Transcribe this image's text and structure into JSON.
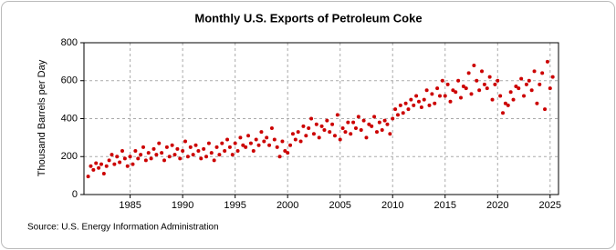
{
  "chart_data": {
    "type": "scatter",
    "title": "Monthly U.S. Exports of Petroleum Coke",
    "y_label": "Thousand Barrels per Day",
    "source": "Source: U.S. Energy Information Administration",
    "color": "#cc0000",
    "grid": true,
    "xlim": [
      1980.6,
      2025.8
    ],
    "xticks": [
      1985,
      1990,
      1995,
      2000,
      2005,
      2010,
      2015,
      2020,
      2025
    ],
    "ylim": [
      0,
      800
    ],
    "yticks": [
      0,
      200,
      400,
      600,
      800
    ],
    "x": [
      1981,
      1981.25,
      1981.5,
      1981.75,
      1982,
      1982.25,
      1982.5,
      1982.75,
      1983,
      1983.25,
      1983.5,
      1983.75,
      1984,
      1984.25,
      1984.5,
      1984.75,
      1985,
      1985.25,
      1985.5,
      1985.75,
      1986,
      1986.25,
      1986.5,
      1986.75,
      1987,
      1987.25,
      1987.5,
      1987.75,
      1988,
      1988.25,
      1988.5,
      1988.75,
      1989,
      1989.25,
      1989.5,
      1989.75,
      1990,
      1990.25,
      1990.5,
      1990.75,
      1991,
      1991.25,
      1991.5,
      1991.75,
      1992,
      1992.25,
      1992.5,
      1992.75,
      1993,
      1993.25,
      1993.5,
      1993.75,
      1994,
      1994.25,
      1994.5,
      1994.75,
      1995,
      1995.25,
      1995.5,
      1995.75,
      1996,
      1996.25,
      1996.5,
      1996.75,
      1997,
      1997.25,
      1997.5,
      1997.75,
      1998,
      1998.25,
      1998.5,
      1998.75,
      1999,
      1999.25,
      1999.5,
      1999.75,
      2000,
      2000.25,
      2000.5,
      2000.75,
      2001,
      2001.25,
      2001.5,
      2001.75,
      2002,
      2002.25,
      2002.5,
      2002.75,
      2003,
      2003.25,
      2003.5,
      2003.75,
      2004,
      2004.25,
      2004.5,
      2004.75,
      2005,
      2005.25,
      2005.5,
      2005.75,
      2006,
      2006.25,
      2006.5,
      2006.75,
      2007,
      2007.25,
      2007.5,
      2007.75,
      2008,
      2008.25,
      2008.5,
      2008.75,
      2009,
      2009.25,
      2009.5,
      2009.75,
      2010,
      2010.25,
      2010.5,
      2010.75,
      2011,
      2011.25,
      2011.5,
      2011.75,
      2012,
      2012.25,
      2012.5,
      2012.75,
      2013,
      2013.25,
      2013.5,
      2013.75,
      2014,
      2014.25,
      2014.5,
      2014.75,
      2015,
      2015.25,
      2015.5,
      2015.75,
      2016,
      2016.25,
      2016.5,
      2016.75,
      2017,
      2017.25,
      2017.5,
      2017.75,
      2018,
      2018.25,
      2018.5,
      2018.75,
      2019,
      2019.25,
      2019.5,
      2019.75,
      2020,
      2020.25,
      2020.5,
      2020.75,
      2021,
      2021.25,
      2021.5,
      2021.75,
      2022,
      2022.25,
      2022.5,
      2022.75,
      2023,
      2023.25,
      2023.5,
      2023.75,
      2024,
      2024.25,
      2024.5,
      2024.75,
      2025,
      2025.25
    ],
    "values": [
      95,
      150,
      130,
      165,
      140,
      160,
      110,
      150,
      180,
      210,
      160,
      200,
      170,
      230,
      190,
      150,
      200,
      160,
      230,
      190,
      210,
      250,
      180,
      220,
      190,
      240,
      210,
      270,
      220,
      180,
      250,
      200,
      260,
      210,
      240,
      190,
      230,
      280,
      200,
      250,
      210,
      260,
      230,
      190,
      240,
      200,
      270,
      220,
      180,
      250,
      210,
      270,
      230,
      290,
      250,
      210,
      270,
      230,
      300,
      260,
      250,
      310,
      270,
      230,
      290,
      260,
      330,
      280,
      300,
      260,
      350,
      290,
      250,
      200,
      280,
      230,
      220,
      260,
      320,
      290,
      330,
      280,
      360,
      310,
      350,
      400,
      320,
      370,
      300,
      360,
      340,
      390,
      330,
      370,
      310,
      420,
      290,
      350,
      330,
      380,
      320,
      380,
      350,
      410,
      340,
      390,
      300,
      370,
      360,
      410,
      330,
      380,
      340,
      390,
      370,
      320,
      400,
      450,
      420,
      470,
      430,
      480,
      450,
      500,
      470,
      520,
      490,
      460,
      500,
      550,
      470,
      530,
      480,
      560,
      520,
      600,
      520,
      580,
      490,
      550,
      540,
      600,
      510,
      570,
      560,
      640,
      530,
      680,
      600,
      550,
      650,
      580,
      560,
      620,
      500,
      580,
      600,
      520,
      430,
      480,
      470,
      540,
      500,
      570,
      560,
      610,
      520,
      580,
      600,
      550,
      650,
      480,
      580,
      640,
      450,
      700,
      560,
      620
    ]
  }
}
